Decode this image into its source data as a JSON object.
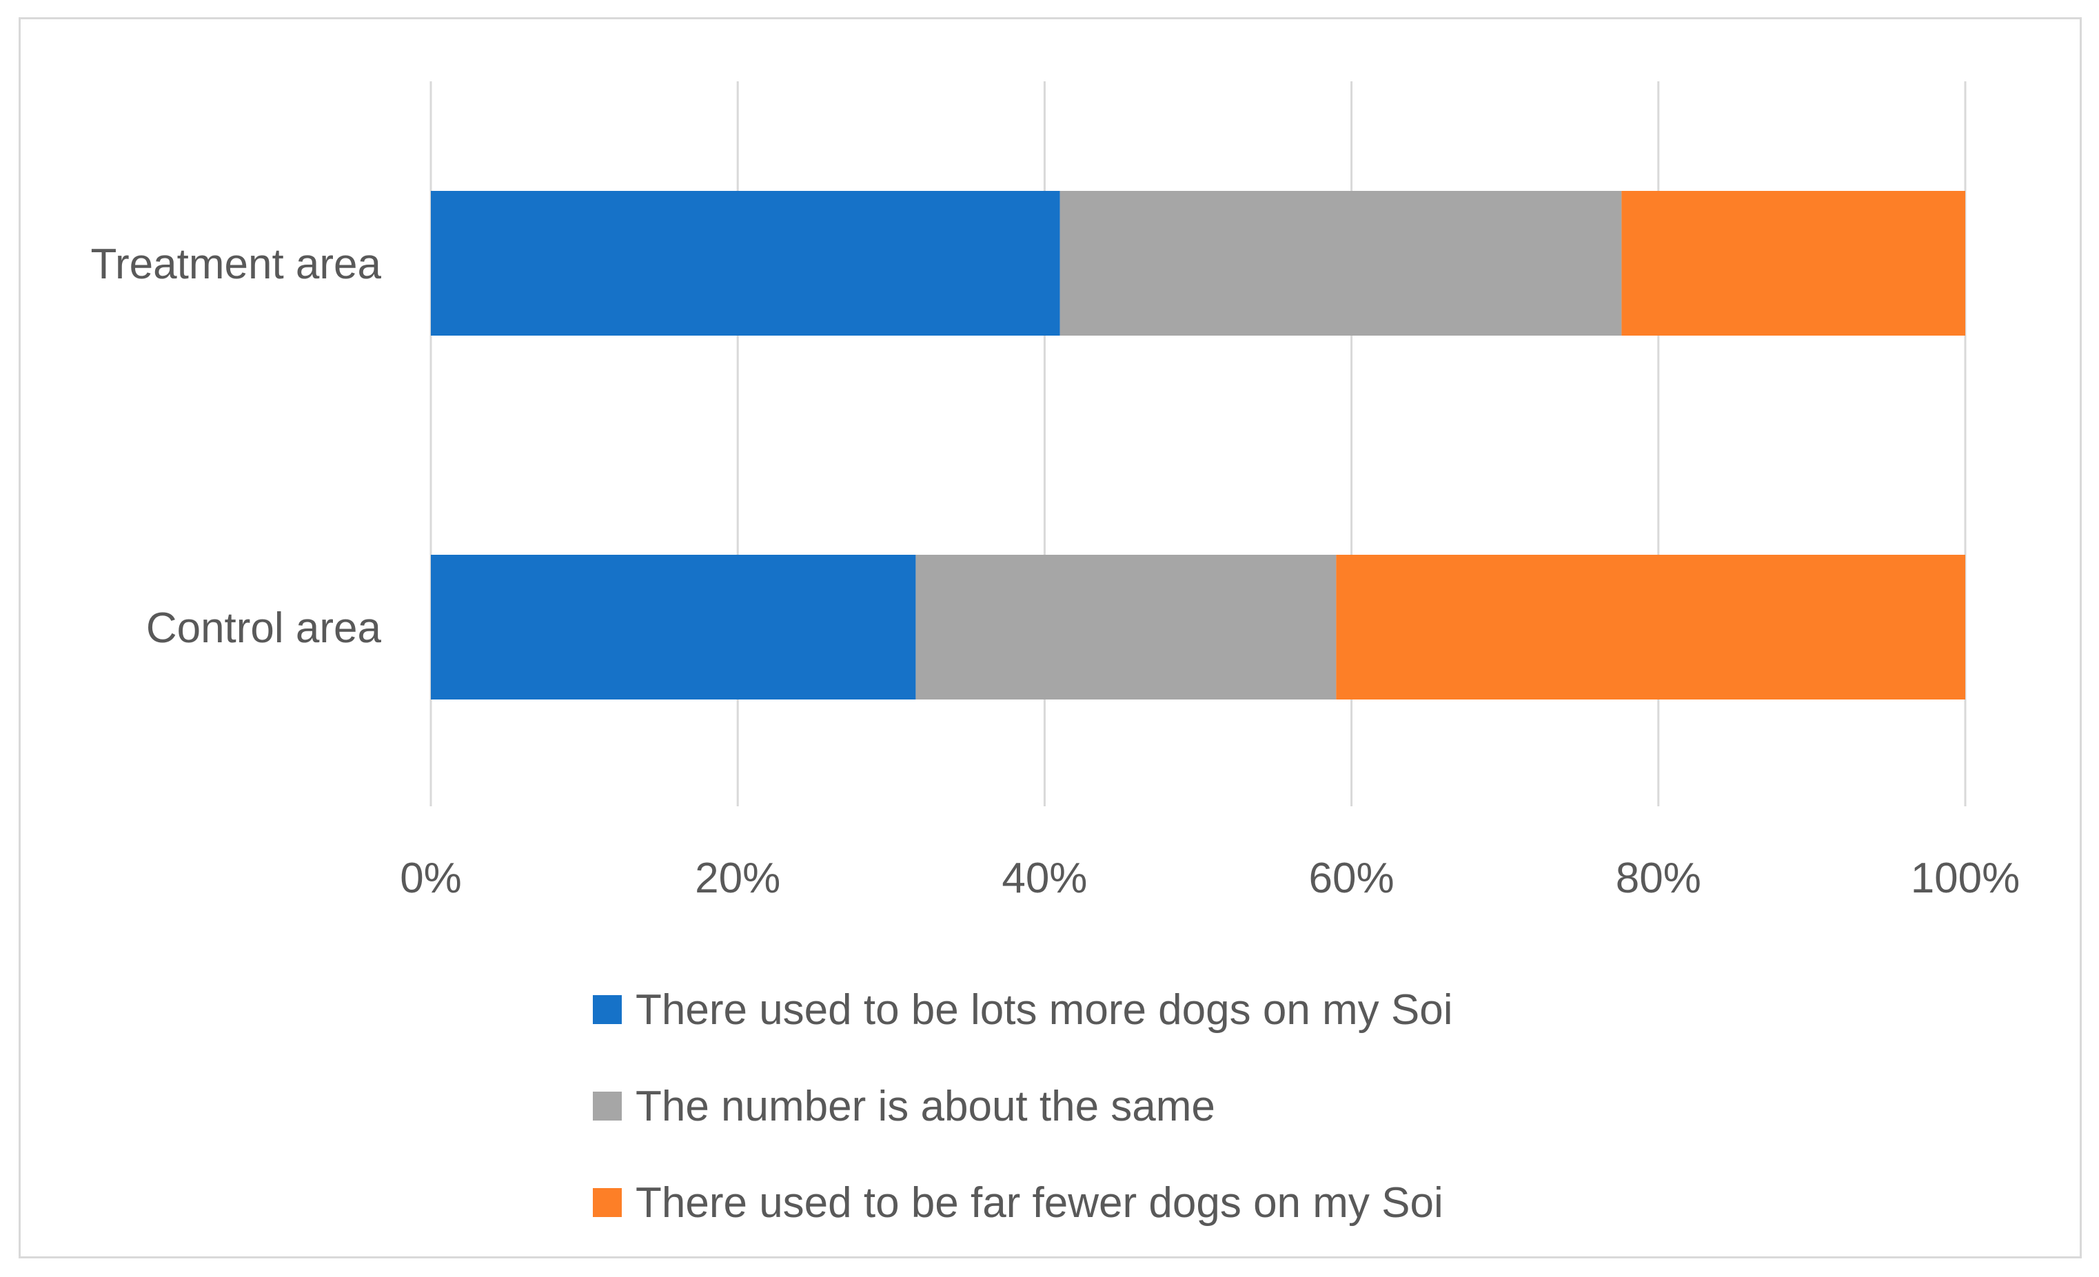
{
  "chart_data": {
    "type": "bar",
    "orientation": "horizontal",
    "stacked": "100%",
    "title": "",
    "xlabel": "",
    "ylabel": "",
    "categories": [
      "Treatment area",
      "Control area"
    ],
    "series": [
      {
        "name": "There used to be lots more dogs on my Soi",
        "values": [
          41,
          31.6
        ],
        "color": "#1672c8"
      },
      {
        "name": "The number is about the same",
        "values": [
          36.6,
          27.4
        ],
        "color": "#a6a6a6"
      },
      {
        "name": "There used to be far fewer dogs on my Soi",
        "values": [
          22.4,
          41
        ],
        "color": "#fd7f27"
      }
    ],
    "xlim": [
      0,
      100
    ],
    "x_ticks": [
      "0%",
      "20%",
      "40%",
      "60%",
      "80%",
      "100%"
    ],
    "grid": "vertical",
    "legend_position": "bottom"
  }
}
